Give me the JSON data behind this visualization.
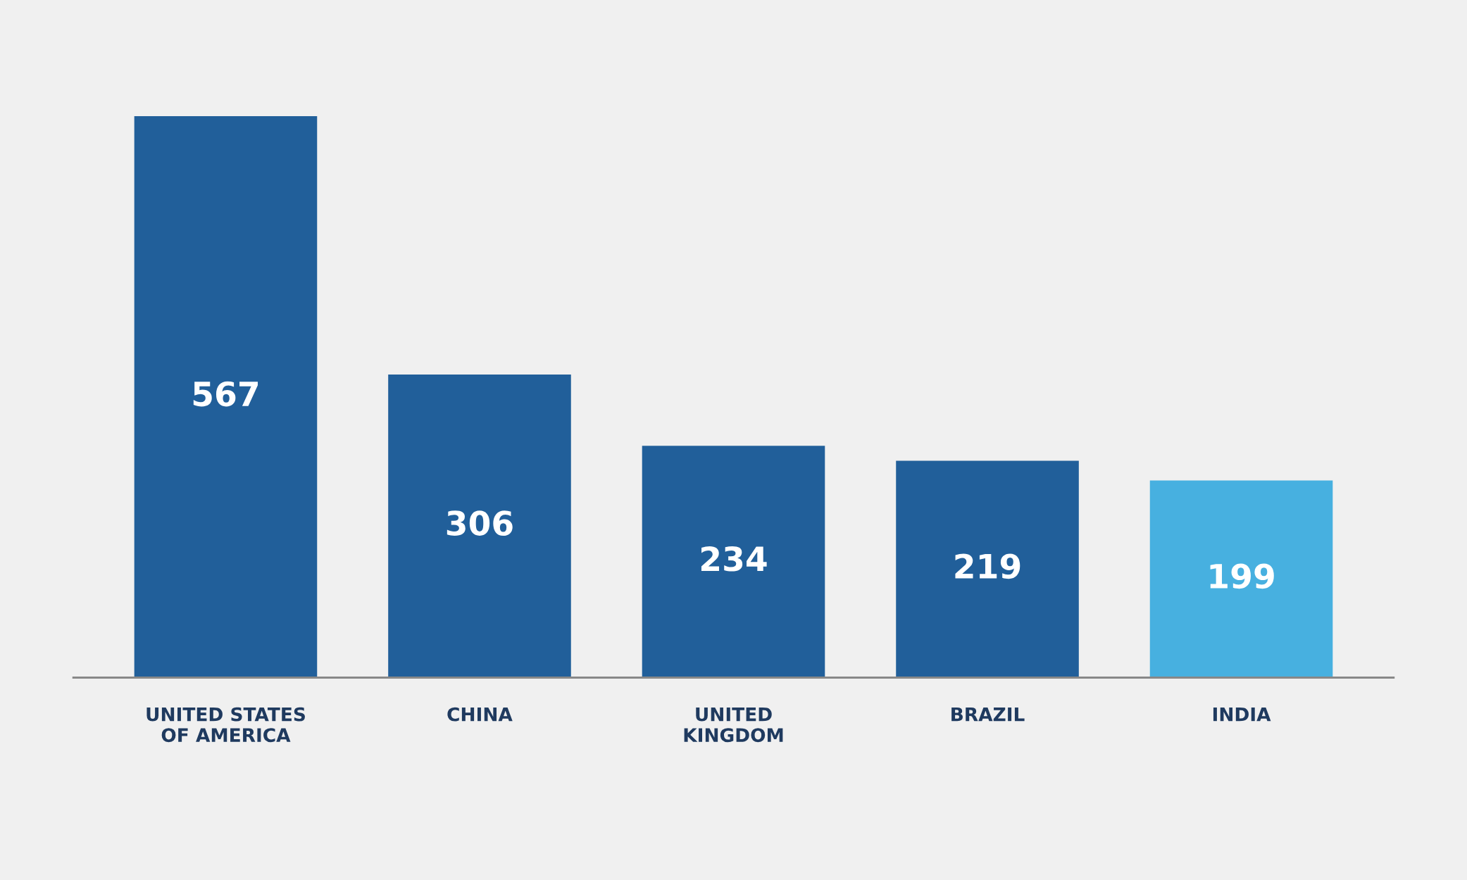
{
  "chart_data": {
    "type": "bar",
    "categories": [
      "UNITED STATES\nOF AMERICA",
      "CHINA",
      "UNITED\nKINGDOM",
      "BRAZIL",
      "INDIA"
    ],
    "values": [
      567,
      306,
      234,
      219,
      199
    ],
    "colors": [
      "#215f9a",
      "#215f9a",
      "#215f9a",
      "#215f9a",
      "#47b0e0"
    ],
    "data_labels": true,
    "grid": false,
    "legend": false
  }
}
